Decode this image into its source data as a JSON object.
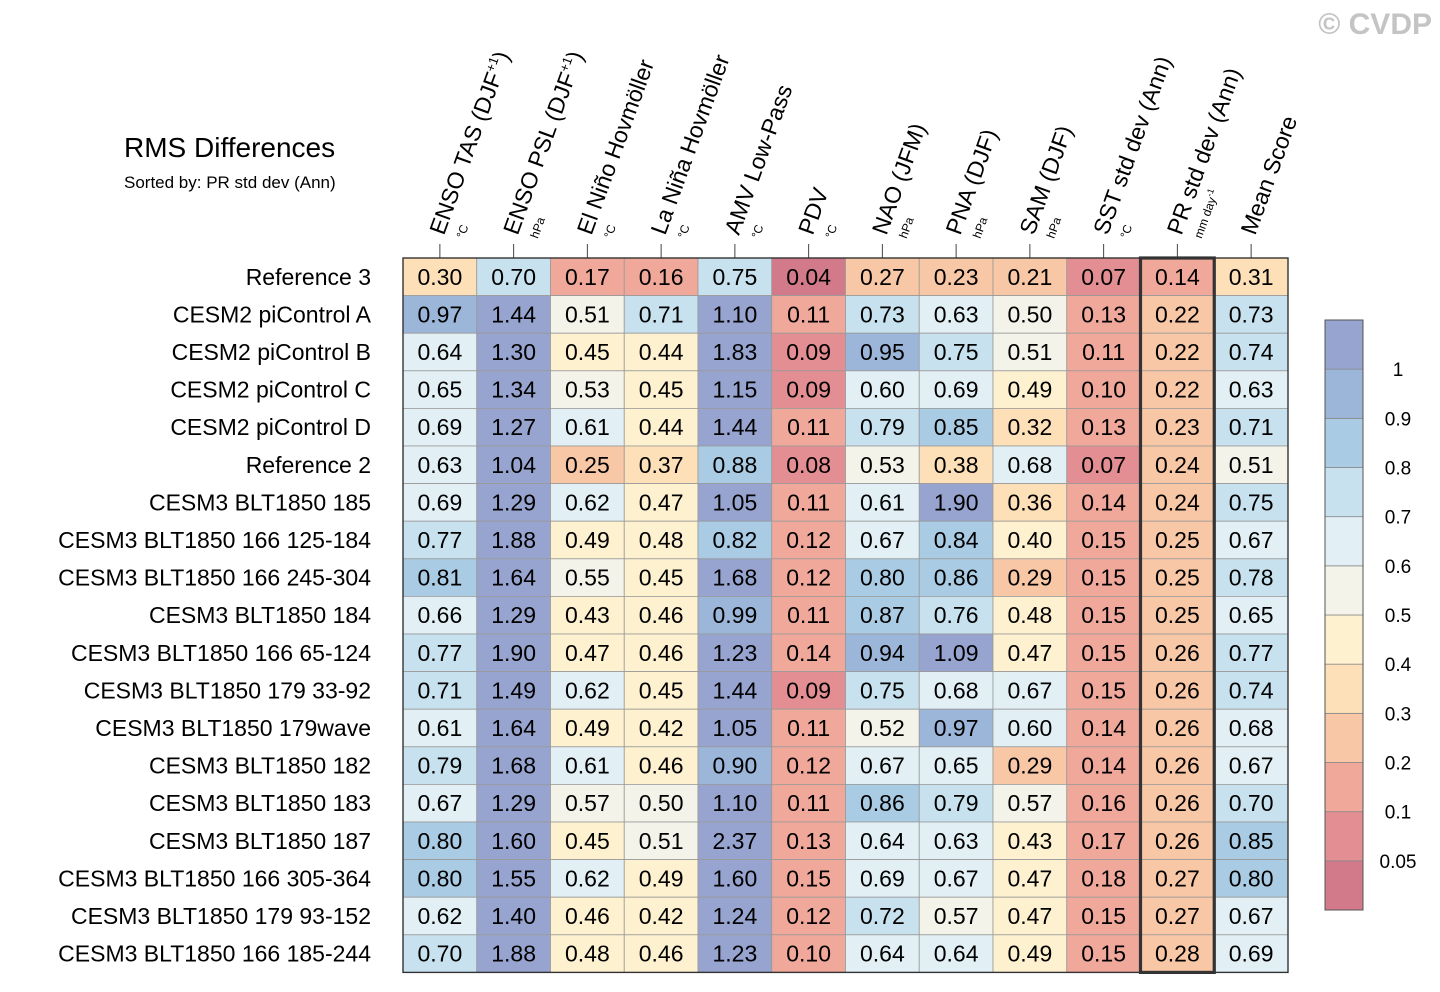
{
  "watermark": "© CVDP",
  "chart_data": {
    "type": "heatmap",
    "title": "RMS Differences",
    "subtitle": "Sorted by: PR std dev (Ann)",
    "highlight_column": 10,
    "columns": [
      {
        "label": "ENSO TAS (DJF",
        "sup": "+1",
        "close": ")",
        "unit": "°C"
      },
      {
        "label": "ENSO PSL (DJF",
        "sup": "+1",
        "close": ")",
        "unit": "hPa"
      },
      {
        "label": "El Niño Hovmöller",
        "unit": "°C"
      },
      {
        "label": "La Niña Hovmöller",
        "unit": "°C"
      },
      {
        "label": "AMV Low-Pass",
        "unit": "°C"
      },
      {
        "label": "PDV",
        "unit": "°C"
      },
      {
        "label": "NAO (JFM)",
        "unit": "hPa"
      },
      {
        "label": "PNA (DJF)",
        "unit": "hPa"
      },
      {
        "label": "SAM (DJF)",
        "unit": "hPa"
      },
      {
        "label": "SST std dev (Ann)",
        "unit": "°C"
      },
      {
        "label": "PR std dev (Ann)",
        "unit": "mm day",
        "unit_sup": "-1"
      },
      {
        "label": "Mean Score",
        "unit": ""
      }
    ],
    "rows": [
      "Reference 3",
      "CESM2 piControl A",
      "CESM2 piControl B",
      "CESM2 piControl C",
      "CESM2 piControl D",
      "Reference 2",
      "CESM3 BLT1850 185",
      "CESM3 BLT1850 166 125-184",
      "CESM3 BLT1850 166 245-304",
      "CESM3 BLT1850 184",
      "CESM3 BLT1850 166 65-124",
      "CESM3 BLT1850 179 33-92",
      "CESM3 BLT1850 179wave",
      "CESM3 BLT1850 182",
      "CESM3 BLT1850 183",
      "CESM3 BLT1850 187",
      "CESM3 BLT1850 166 305-364",
      "CESM3 BLT1850 179 93-152",
      "CESM3 BLT1850 166 185-244"
    ],
    "values": [
      [
        "0.30",
        "0.70",
        "0.17",
        "0.16",
        "0.75",
        "0.04",
        "0.27",
        "0.23",
        "0.21",
        "0.07",
        "0.14",
        "0.31"
      ],
      [
        "0.97",
        "1.44",
        "0.51",
        "0.71",
        "1.10",
        "0.11",
        "0.73",
        "0.63",
        "0.50",
        "0.13",
        "0.22",
        "0.73"
      ],
      [
        "0.64",
        "1.30",
        "0.45",
        "0.44",
        "1.83",
        "0.09",
        "0.95",
        "0.75",
        "0.51",
        "0.11",
        "0.22",
        "0.74"
      ],
      [
        "0.65",
        "1.34",
        "0.53",
        "0.45",
        "1.15",
        "0.09",
        "0.60",
        "0.69",
        "0.49",
        "0.10",
        "0.22",
        "0.63"
      ],
      [
        "0.69",
        "1.27",
        "0.61",
        "0.44",
        "1.44",
        "0.11",
        "0.79",
        "0.85",
        "0.32",
        "0.13",
        "0.23",
        "0.71"
      ],
      [
        "0.63",
        "1.04",
        "0.25",
        "0.37",
        "0.88",
        "0.08",
        "0.53",
        "0.38",
        "0.68",
        "0.07",
        "0.24",
        "0.51"
      ],
      [
        "0.69",
        "1.29",
        "0.62",
        "0.47",
        "1.05",
        "0.11",
        "0.61",
        "1.90",
        "0.36",
        "0.14",
        "0.24",
        "0.75"
      ],
      [
        "0.77",
        "1.88",
        "0.49",
        "0.48",
        "0.82",
        "0.12",
        "0.67",
        "0.84",
        "0.40",
        "0.15",
        "0.25",
        "0.67"
      ],
      [
        "0.81",
        "1.64",
        "0.55",
        "0.45",
        "1.68",
        "0.12",
        "0.80",
        "0.86",
        "0.29",
        "0.15",
        "0.25",
        "0.78"
      ],
      [
        "0.66",
        "1.29",
        "0.43",
        "0.46",
        "0.99",
        "0.11",
        "0.87",
        "0.76",
        "0.48",
        "0.15",
        "0.25",
        "0.65"
      ],
      [
        "0.77",
        "1.90",
        "0.47",
        "0.46",
        "1.23",
        "0.14",
        "0.94",
        "1.09",
        "0.47",
        "0.15",
        "0.26",
        "0.77"
      ],
      [
        "0.71",
        "1.49",
        "0.62",
        "0.45",
        "1.44",
        "0.09",
        "0.75",
        "0.68",
        "0.67",
        "0.15",
        "0.26",
        "0.74"
      ],
      [
        "0.61",
        "1.64",
        "0.49",
        "0.42",
        "1.05",
        "0.11",
        "0.52",
        "0.97",
        "0.60",
        "0.14",
        "0.26",
        "0.68"
      ],
      [
        "0.79",
        "1.68",
        "0.61",
        "0.46",
        "0.90",
        "0.12",
        "0.67",
        "0.65",
        "0.29",
        "0.14",
        "0.26",
        "0.67"
      ],
      [
        "0.67",
        "1.29",
        "0.57",
        "0.50",
        "1.10",
        "0.11",
        "0.86",
        "0.79",
        "0.57",
        "0.16",
        "0.26",
        "0.70"
      ],
      [
        "0.80",
        "1.60",
        "0.45",
        "0.51",
        "2.37",
        "0.13",
        "0.64",
        "0.63",
        "0.43",
        "0.17",
        "0.26",
        "0.85"
      ],
      [
        "0.80",
        "1.55",
        "0.62",
        "0.49",
        "1.60",
        "0.15",
        "0.69",
        "0.67",
        "0.47",
        "0.18",
        "0.27",
        "0.80"
      ],
      [
        "0.62",
        "1.40",
        "0.46",
        "0.42",
        "1.24",
        "0.12",
        "0.72",
        "0.57",
        "0.47",
        "0.15",
        "0.27",
        "0.67"
      ],
      [
        "0.70",
        "1.88",
        "0.48",
        "0.46",
        "1.23",
        "0.10",
        "0.64",
        "0.64",
        "0.49",
        "0.15",
        "0.28",
        "0.69"
      ]
    ],
    "colorbar": {
      "levels": [
        "0.05",
        "0.1",
        "0.2",
        "0.3",
        "0.4",
        "0.5",
        "0.6",
        "0.7",
        "0.8",
        "0.9",
        "1"
      ],
      "colors": [
        "#d27a8a",
        "#e38e92",
        "#f0a89b",
        "#f8c7a6",
        "#fde0b8",
        "#fdf1cf",
        "#f4f3e9",
        "#e2f0f6",
        "#c7e1ee",
        "#a9cbe3",
        "#9cb6da",
        "#97a4cf"
      ]
    }
  }
}
